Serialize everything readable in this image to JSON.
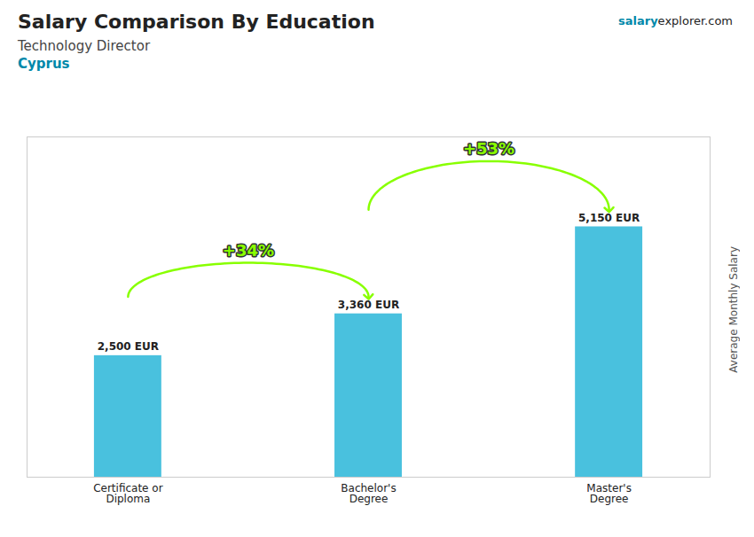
{
  "chart_data": {
    "type": "bar",
    "title": "Salary Comparison By Education",
    "subtitle": [
      "Technology Director",
      "Cyprus"
    ],
    "credit": [
      "salary",
      "explorer.com"
    ],
    "ylabel": "Average Monthly Salary",
    "categories": [
      "Certificate or\nDiploma",
      "Bachelor's\nDegree",
      "Master's\nDegree"
    ],
    "values": [
      2500,
      3360,
      5150
    ],
    "value_labels": [
      "2,500 EUR",
      "3,360 EUR",
      "5,150 EUR"
    ],
    "data_labels": true,
    "color": "#29b6d8",
    "ylim": [
      0,
      7000
    ],
    "tick_labels": "x",
    "grid": false,
    "annotations": [
      {
        "label": "+34%",
        "from": "Certificate or\nDiploma",
        "to": "Bachelor's\nDegree",
        "color": "#88ff00"
      },
      {
        "label": "+53%",
        "from": "Bachelor's\nDegree",
        "to": "Master's\nDegree",
        "color": "#88ff00"
      }
    ]
  }
}
